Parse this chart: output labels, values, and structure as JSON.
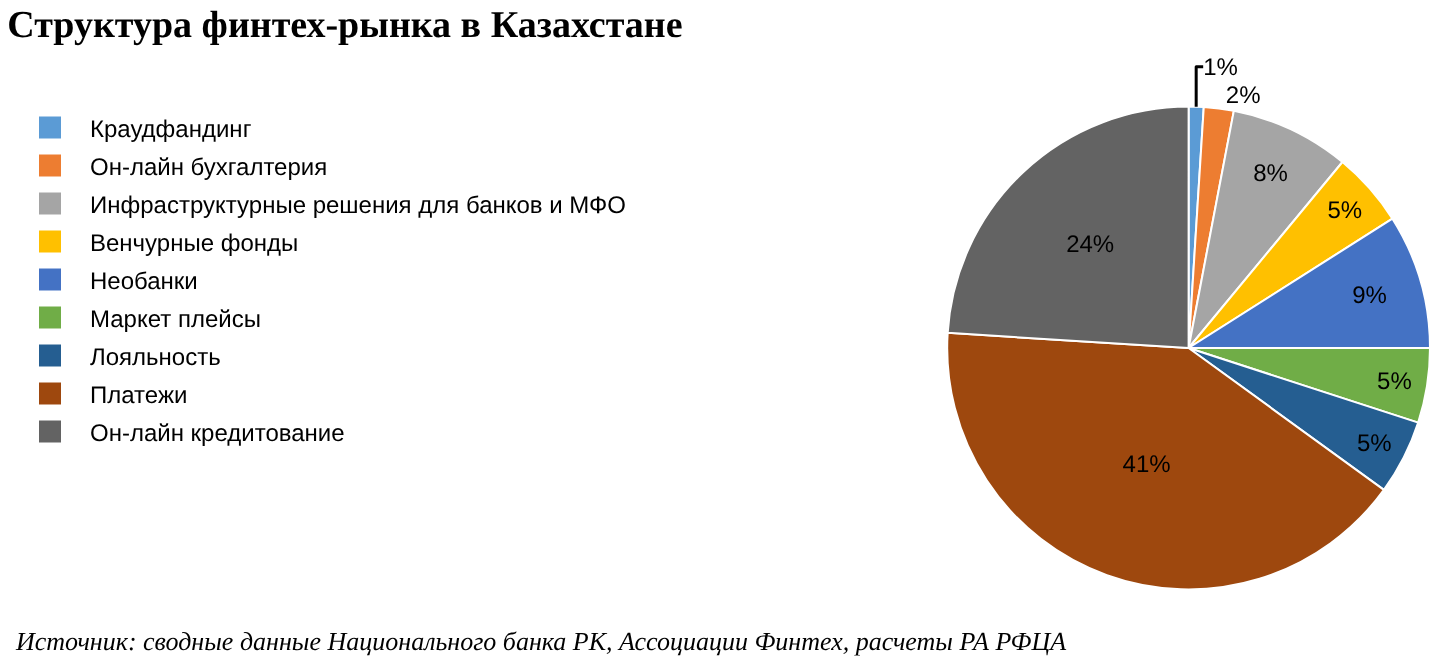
{
  "chart_data": {
    "type": "pie",
    "title": "Структура финтех-рынка в Казахстане",
    "categories": [
      "Краудфандинг",
      "Он-лайн бухгалтерия",
      "Инфраструктурные решения для банков и МФО",
      "Венчурные фонды",
      "Необанки",
      "Маркет плейсы",
      "Лояльность",
      "Платежи",
      "Он-лайн кредитование"
    ],
    "values": [
      1,
      2,
      8,
      5,
      9,
      5,
      5,
      41,
      24
    ],
    "value_labels": [
      "1%",
      "2%",
      "8%",
      "5%",
      "9%",
      "5%",
      "5%",
      "41%",
      "24%"
    ],
    "colors": [
      "#5b9bd5",
      "#ed7d31",
      "#a5a5a5",
      "#ffc000",
      "#4472c4",
      "#70ad47",
      "#255e91",
      "#9e480e",
      "#636363"
    ],
    "legend": "left",
    "annotations": [
      "Источник: сводные данные Национального банка РК, Ассоциации Финтех, расчеты РА РФЦА"
    ]
  }
}
